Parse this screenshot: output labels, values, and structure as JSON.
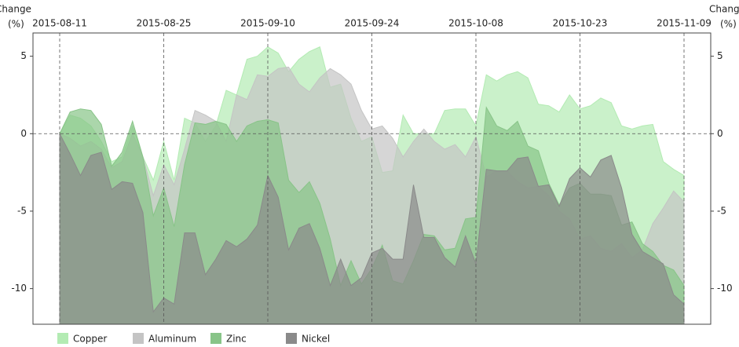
{
  "chart_data": {
    "type": "area",
    "ylabel": "Change",
    "yunit": "(%)",
    "categories": [
      "2015-08-11",
      null,
      null,
      null,
      null,
      null,
      null,
      null,
      null,
      null,
      "2015-08-25",
      null,
      null,
      null,
      null,
      null,
      null,
      null,
      null,
      null,
      "2015-09-10",
      null,
      null,
      null,
      null,
      null,
      null,
      null,
      null,
      null,
      "2015-09-24",
      null,
      null,
      null,
      null,
      null,
      null,
      null,
      null,
      null,
      "2015-10-08",
      null,
      null,
      null,
      null,
      null,
      null,
      null,
      null,
      null,
      "2015-10-23",
      null,
      null,
      null,
      null,
      null,
      null,
      null,
      null,
      null,
      "2015-11-09"
    ],
    "series": [
      {
        "name": "Copper",
        "color": "#b3ebb3",
        "values": [
          0,
          1.2,
          1.0,
          0.5,
          -0.5,
          -1.8,
          -1.5,
          0.5,
          -1.5,
          -3.0,
          -0.5,
          -3.0,
          1.0,
          0.7,
          -0.5,
          0.5,
          2.8,
          2.5,
          4.8,
          5.0,
          5.6,
          5.2,
          4.0,
          4.8,
          5.3,
          5.6,
          3.0,
          3.2,
          1.0,
          -0.5,
          -0.2,
          -2.5,
          -2.4,
          1.2,
          0,
          0,
          0,
          1.5,
          1.6,
          1.6,
          0.5,
          3.8,
          3.4,
          3.8,
          4.0,
          3.6,
          1.9,
          1.8,
          1.4,
          2.5,
          1.6,
          1.8,
          2.3,
          2.0,
          0.5,
          0.3,
          0.5,
          0.6,
          -1.8,
          -2.3,
          -2.7
        ]
      },
      {
        "name": "Aluminum",
        "color": "#c4c4c4",
        "values": [
          0,
          -0.3,
          -0.8,
          -0.5,
          -1.0,
          -2.2,
          -1.8,
          0,
          -1.5,
          -4.0,
          -2.0,
          -3.3,
          -1.0,
          1.5,
          1.2,
          0.8,
          -0.5,
          2.5,
          2.2,
          3.8,
          3.7,
          4.2,
          4.3,
          3.2,
          2.7,
          3.6,
          4.2,
          3.8,
          3.2,
          1.5,
          0.3,
          0.5,
          -0.3,
          -1.5,
          -0.5,
          0.3,
          -0.5,
          -1.0,
          -0.7,
          -1.5,
          -0.2,
          -2.8,
          -2.4,
          -2.4,
          -3.1,
          -3.5,
          -3.4,
          -4.0,
          -5.0,
          -5.5,
          -6.8,
          -6.6,
          -7.4,
          -7.6,
          -7.1,
          -8.0,
          -7.5,
          -5.8,
          -4.8,
          -3.7,
          -4.4
        ]
      },
      {
        "name": "Zinc",
        "color": "#88c488",
        "values": [
          0,
          1.4,
          1.6,
          1.5,
          0.6,
          -2.1,
          -1.2,
          0.8,
          -1.5,
          -5.3,
          -3.5,
          -6.0,
          -2.0,
          0.7,
          0.6,
          0.8,
          0.6,
          -0.5,
          0.5,
          0.8,
          0.9,
          0.7,
          -3.0,
          -3.8,
          -3.1,
          -4.5,
          -6.8,
          -9.8,
          -8.2,
          -9.7,
          -8.7,
          -7.2,
          -9.5,
          -9.7,
          -8.2,
          -6.5,
          -6.6,
          -7.5,
          -7.4,
          -5.5,
          -5.4,
          1.7,
          0.5,
          0.2,
          0.8,
          -0.8,
          -1.1,
          -3.2,
          -4.6,
          -3.5,
          -3.2,
          -3.9,
          -3.9,
          -4.0,
          -5.9,
          -5.7,
          -7.1,
          -7.6,
          -8.5,
          -8.8,
          -9.8
        ]
      },
      {
        "name": "Nickel",
        "color": "#8a8a8a",
        "values": [
          0,
          -1.3,
          -2.7,
          -1.4,
          -1.2,
          -3.6,
          -3.1,
          -3.2,
          -5.1,
          -11.5,
          -10.6,
          -11.0,
          -6.4,
          -6.4,
          -9.1,
          -8.1,
          -6.9,
          -7.3,
          -6.8,
          -5.9,
          -2.7,
          -4.1,
          -7.5,
          -6.1,
          -5.8,
          -7.4,
          -9.8,
          -8.1,
          -9.8,
          -9.3,
          -7.7,
          -7.4,
          -8.1,
          -8.1,
          -3.3,
          -6.7,
          -6.7,
          -8.0,
          -8.6,
          -6.6,
          -8.4,
          -2.3,
          -2.4,
          -2.4,
          -1.6,
          -1.5,
          -3.4,
          -3.3,
          -4.7,
          -2.9,
          -2.2,
          -2.8,
          -1.7,
          -1.4,
          -3.5,
          -6.5,
          -7.6,
          -8.0,
          -8.4,
          -10.4,
          -11.0
        ]
      }
    ],
    "ylim": [
      -12.3,
      6.5
    ],
    "yticks": [
      -10,
      -5,
      0,
      5
    ],
    "grid": "x",
    "zero_line": true,
    "legend": "bottom",
    "opacity": 0.7
  }
}
